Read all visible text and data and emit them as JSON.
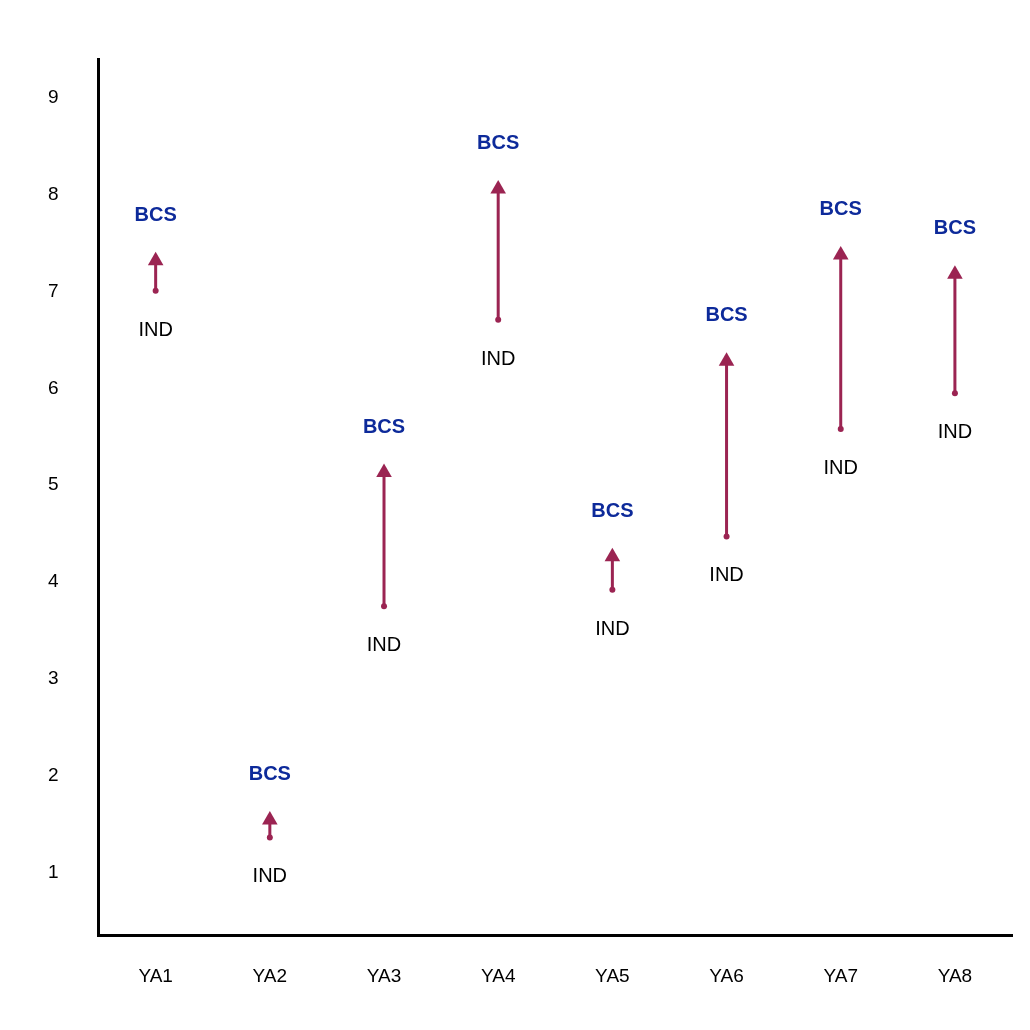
{
  "chart_data": {
    "type": "scatter",
    "categories": [
      "YA1",
      "YA2",
      "YA3",
      "YA4",
      "YA5",
      "YA6",
      "YA7",
      "YA8"
    ],
    "series": [
      {
        "name": "IND",
        "color": "#9b2452",
        "marker": "circle",
        "values": [
          7.01,
          1.36,
          3.75,
          6.71,
          3.92,
          4.47,
          5.58,
          5.95
        ]
      },
      {
        "name": "BCS",
        "color": "#9b2452",
        "marker": "triangle",
        "values": [
          7.32,
          1.54,
          5.13,
          8.06,
          4.26,
          6.28,
          7.38,
          7.18
        ]
      }
    ],
    "ylim": [
      0.35,
      9.4
    ],
    "yticks": [
      1,
      2,
      3,
      4,
      5,
      6,
      7,
      8,
      9
    ],
    "grid": false,
    "legend": false
  }
}
